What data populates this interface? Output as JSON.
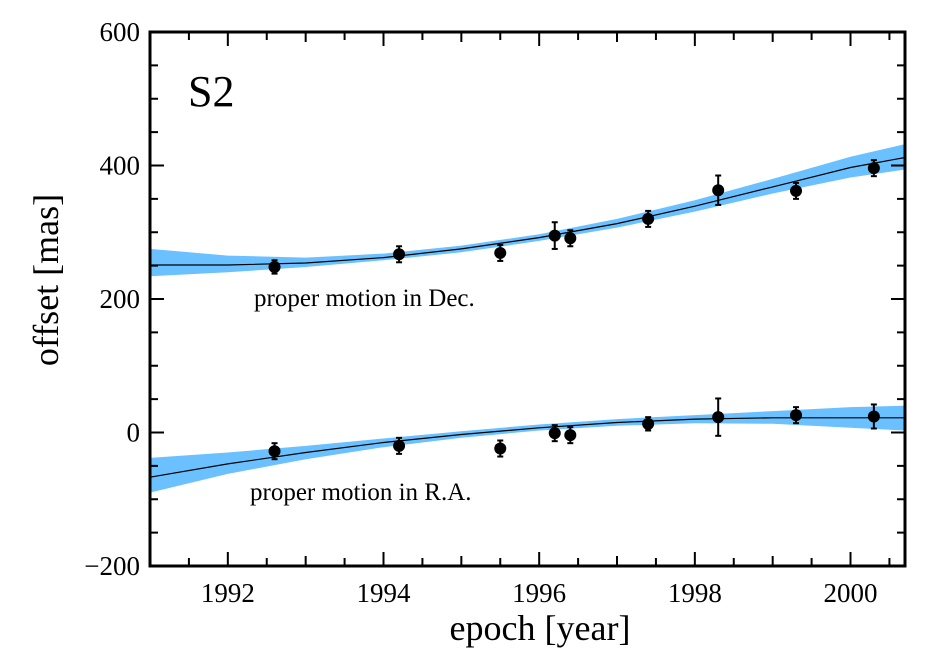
{
  "chart_data": {
    "type": "scatter",
    "title": "S2",
    "xlabel": "epoch [year]",
    "ylabel": "offset [mas]",
    "xlim": [
      1991.0,
      2000.7
    ],
    "ylim": [
      -200,
      600
    ],
    "xticks": [
      1992,
      1994,
      1996,
      1998,
      2000
    ],
    "xtick_labels": [
      "1992",
      "1994",
      "1996",
      "1998",
      "2000"
    ],
    "yticks": [
      -200,
      0,
      200,
      400,
      600
    ],
    "ytick_labels": [
      "−200",
      "0",
      "200",
      "400",
      "600"
    ],
    "grid": false,
    "band_color": "#6bc0ff",
    "line_color": "#000000",
    "point_color": "#000000",
    "annotations": [
      "proper motion in Dec.",
      "proper motion in R.A."
    ],
    "series": [
      {
        "label": "proper motion in Dec.",
        "points": [
          {
            "x": 1992.6,
            "y": 248,
            "err": 10
          },
          {
            "x": 1994.2,
            "y": 267,
            "err": 12
          },
          {
            "x": 1995.5,
            "y": 269,
            "err": 12
          },
          {
            "x": 1996.2,
            "y": 295,
            "err": 20
          },
          {
            "x": 1996.4,
            "y": 291,
            "err": 12
          },
          {
            "x": 1997.4,
            "y": 320,
            "err": 12
          },
          {
            "x": 1998.3,
            "y": 363,
            "err": 22
          },
          {
            "x": 1999.3,
            "y": 362,
            "err": 12
          },
          {
            "x": 2000.3,
            "y": 396,
            "err": 12
          }
        ],
        "fit_line": {
          "x": [
            1991.0,
            1992.0,
            1993.0,
            1994.0,
            1995.0,
            1996.0,
            1997.0,
            1998.0,
            1999.0,
            2000.0,
            2000.7
          ],
          "y": [
            251,
            251,
            254,
            262,
            275,
            292,
            313,
            339,
            368,
            397,
            412
          ]
        },
        "band": {
          "x": [
            1991.0,
            1992.0,
            1993.0,
            1994.0,
            1995.0,
            1996.0,
            1997.0,
            1998.0,
            1999.0,
            2000.0,
            2000.7
          ],
          "lower": [
            234,
            240,
            248,
            258,
            270,
            287,
            307,
            331,
            358,
            382,
            394
          ],
          "upper": [
            275,
            265,
            262,
            268,
            280,
            297,
            320,
            348,
            380,
            413,
            432
          ]
        }
      },
      {
        "label": "proper motion in R.A.",
        "points": [
          {
            "x": 1992.6,
            "y": -28,
            "err": 12
          },
          {
            "x": 1994.2,
            "y": -20,
            "err": 12
          },
          {
            "x": 1995.5,
            "y": -24,
            "err": 12
          },
          {
            "x": 1996.2,
            "y": -1,
            "err": 12
          },
          {
            "x": 1996.4,
            "y": -4,
            "err": 12
          },
          {
            "x": 1997.4,
            "y": 13,
            "err": 10
          },
          {
            "x": 1998.3,
            "y": 23,
            "err": 28
          },
          {
            "x": 1999.3,
            "y": 26,
            "err": 12
          },
          {
            "x": 2000.3,
            "y": 24,
            "err": 18
          }
        ],
        "fit_line": {
          "x": [
            1991.0,
            1992.0,
            1993.0,
            1994.0,
            1995.0,
            1996.0,
            1997.0,
            1998.0,
            1999.0,
            2000.0,
            2000.7
          ],
          "y": [
            -67,
            -47,
            -30,
            -15,
            -3,
            7,
            15,
            20,
            22,
            22,
            22
          ]
        },
        "band": {
          "x": [
            1991.0,
            1992.0,
            1993.0,
            1994.0,
            1995.0,
            1996.0,
            1997.0,
            1998.0,
            1999.0,
            2000.0,
            2000.7
          ],
          "lower": [
            -90,
            -62,
            -40,
            -22,
            -8,
            3,
            10,
            14,
            13,
            7,
            3
          ],
          "upper": [
            -38,
            -30,
            -20,
            -9,
            2,
            12,
            20,
            26,
            32,
            38,
            40
          ]
        }
      }
    ]
  }
}
